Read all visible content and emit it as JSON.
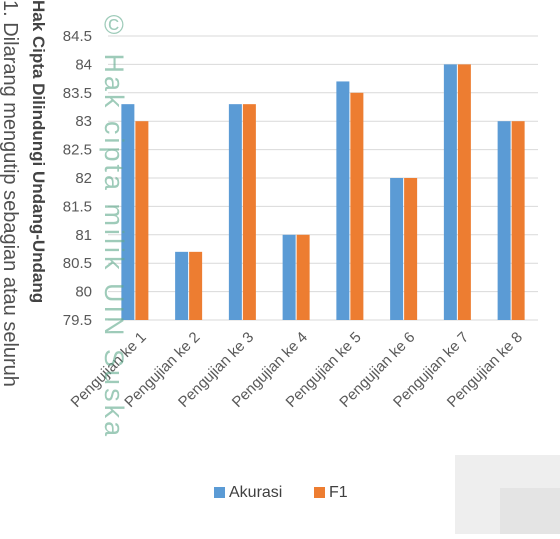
{
  "chart_data": {
    "type": "bar",
    "categories": [
      "Pengujian ke 1",
      "Pengujian ke 2",
      "Pengujian ke 3",
      "Pengujian ke 4",
      "Pengujian ke 5",
      "Pengujian ke 6",
      "Pengujian ke 7",
      "Pengujian ke 8"
    ],
    "series": [
      {
        "name": "Akurasi",
        "values": [
          83.3,
          80.7,
          83.3,
          81.0,
          83.7,
          82.0,
          84.0,
          83.0
        ]
      },
      {
        "name": "F1",
        "values": [
          83.0,
          80.7,
          83.3,
          81.0,
          83.5,
          82.0,
          84.0,
          83.0
        ]
      }
    ],
    "yticks": [
      "79.5",
      "80",
      "80.5",
      "81",
      "81.5",
      "82",
      "82.5",
      "83",
      "83.5",
      "84",
      "84.5"
    ],
    "ylim": [
      79.5,
      84.5
    ],
    "title": "",
    "xlabel": "",
    "ylabel": "",
    "grid": true,
    "legend_position": "bottom",
    "colors": {
      "Akurasi": "#5b9bd5",
      "F1": "#ed7d31",
      "grid": "#d9d9d9",
      "axis_text": "#595959"
    }
  },
  "watermark": {
    "brand": "© Hak cipta milik UIN Suska",
    "heading": "Hak Cipta Dilindungi Undang-Undang",
    "rule": "1. Dilarang mengutip sebagian atau seluruh"
  }
}
